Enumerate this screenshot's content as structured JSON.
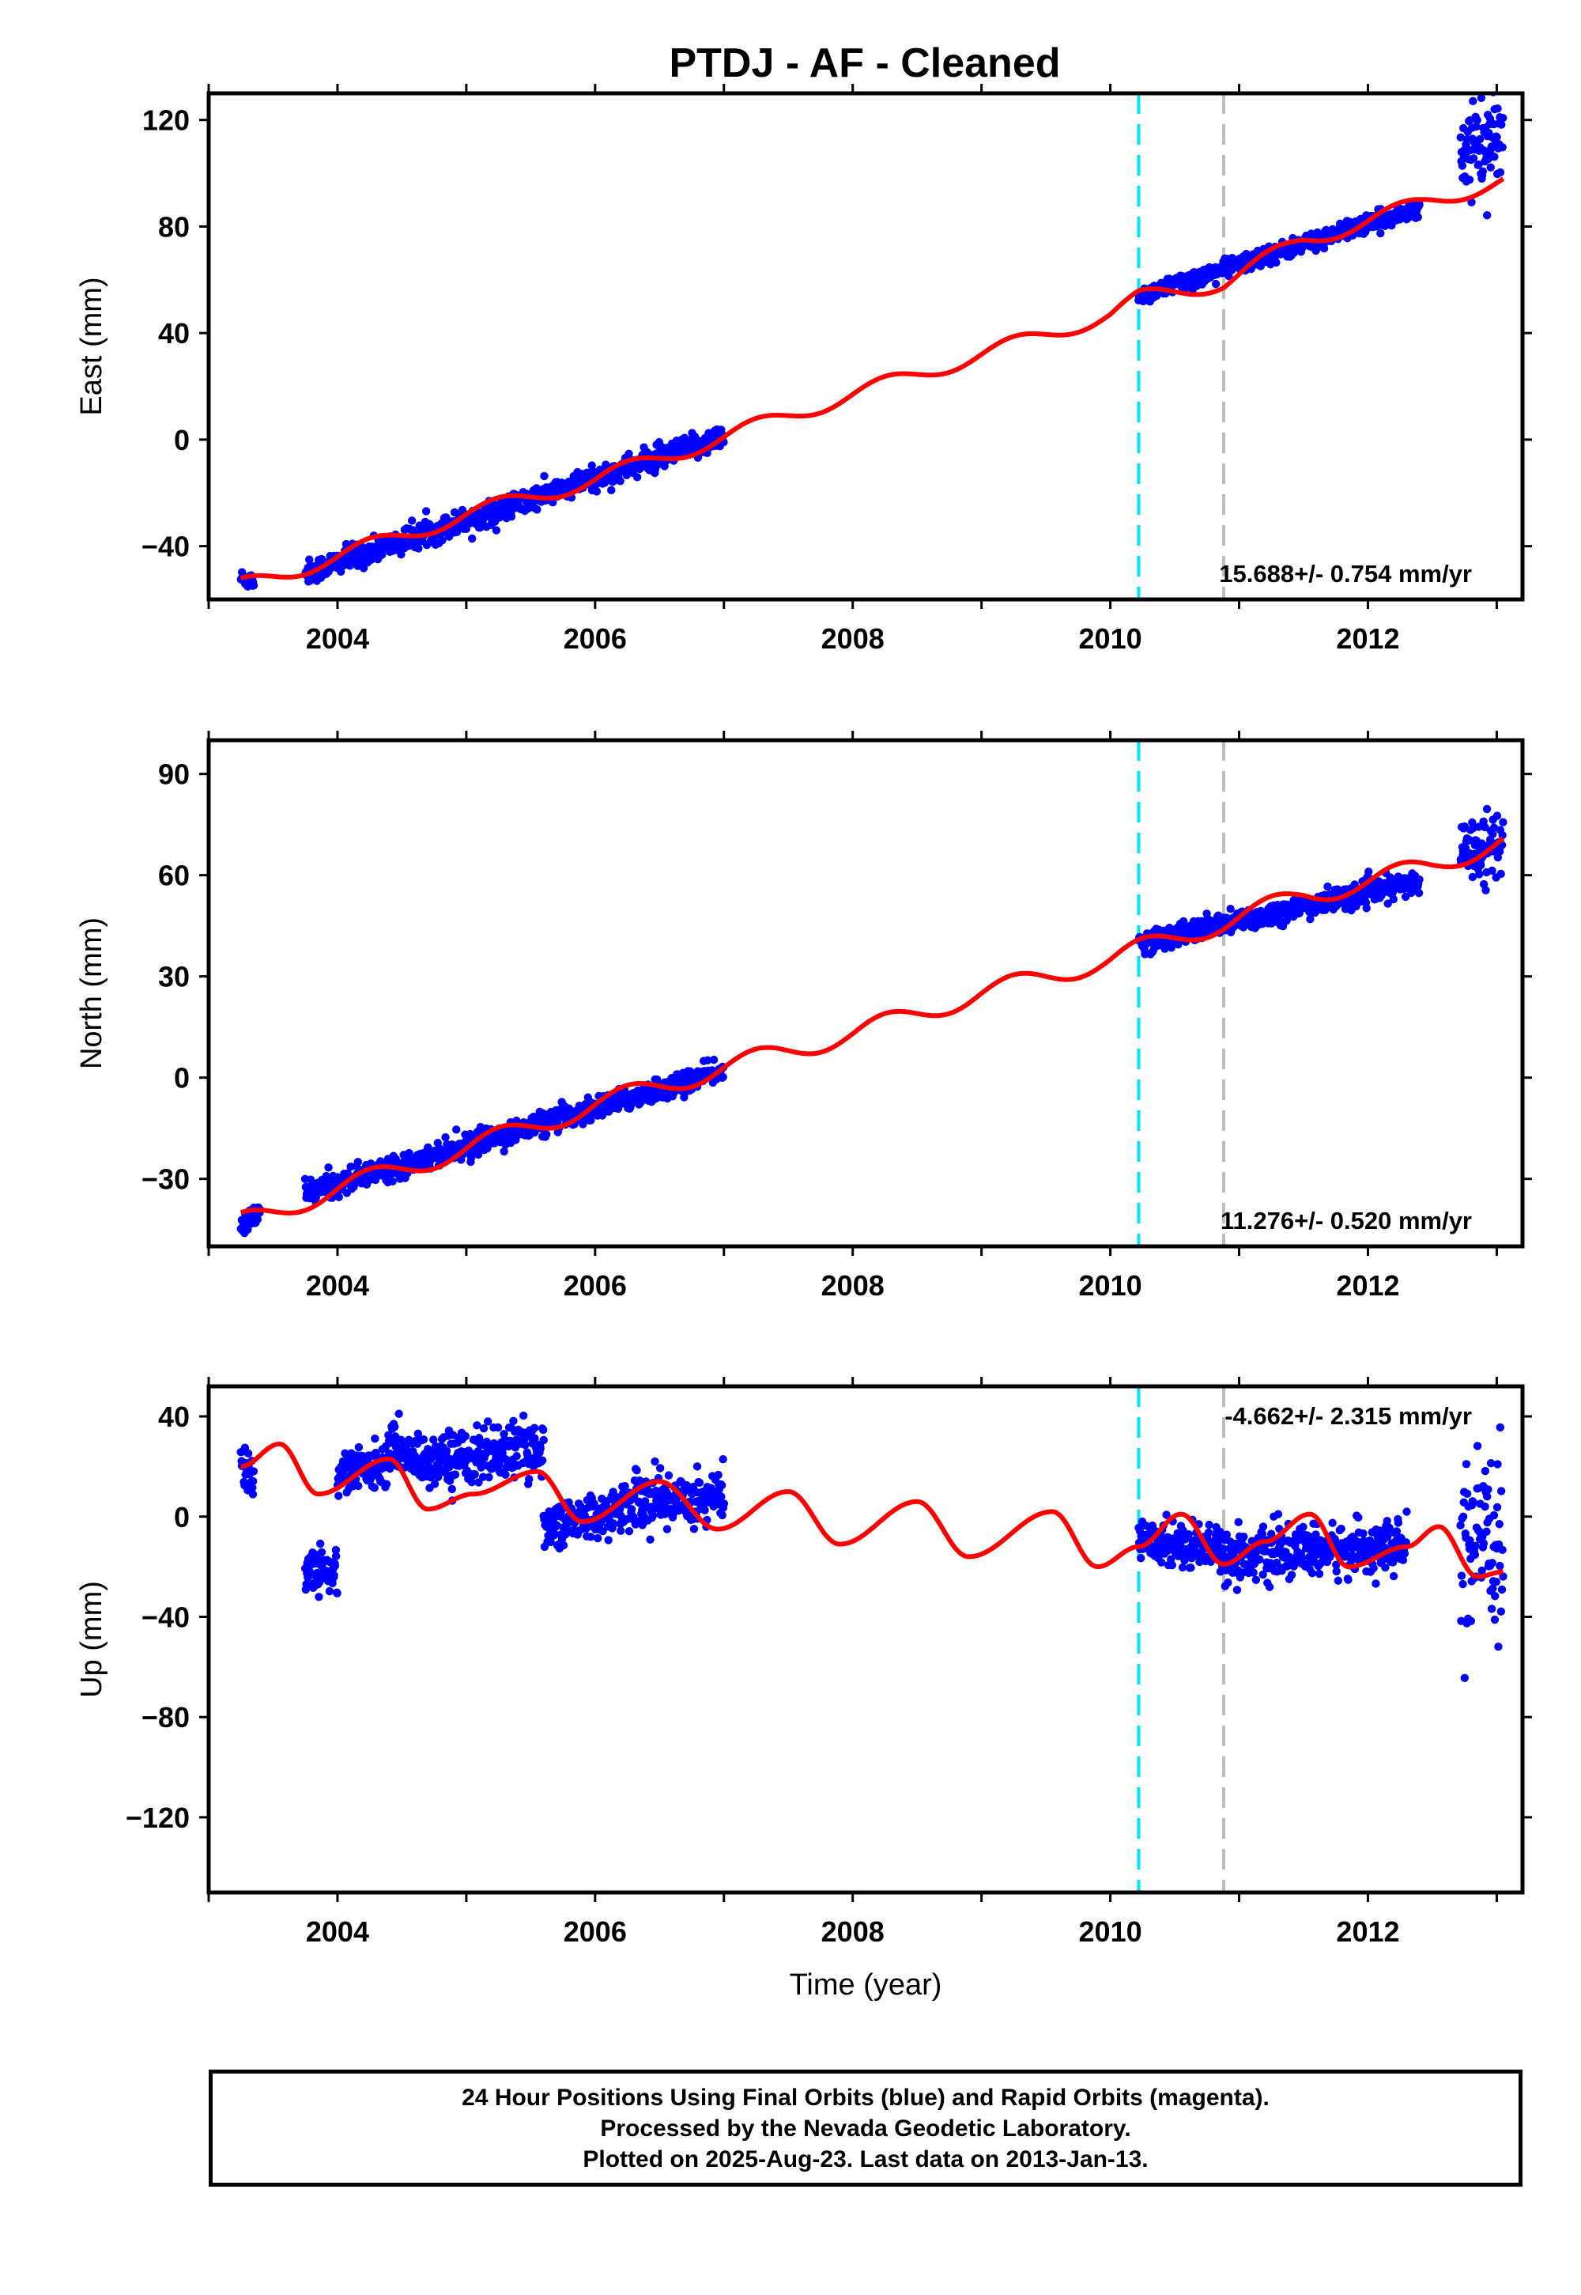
{
  "title": "PTDJ  - AF - Cleaned",
  "footer": {
    "line1": "24 Hour Positions Using Final Orbits (blue) and Rapid Orbits (magenta).",
    "line2": "Processed by the Nevada Geodetic Laboratory.",
    "line3": "Plotted on 2025-Aug-23. Last data on 2013-Jan-13."
  },
  "colors": {
    "data_points": "#0000ff",
    "model_fit": "#ff0000",
    "equipment_change_line": "#00e5ff",
    "other_offset_line": "#bdbdbd"
  },
  "xlabel": "Time (year)",
  "chart_data": [
    {
      "type": "scatter",
      "component": "east",
      "ylabel": "East (mm)",
      "xlim": [
        2003.0,
        2013.2
      ],
      "ylim": [
        -60,
        130
      ],
      "yticks": [
        -40,
        0,
        40,
        80,
        120
      ],
      "xticks": [
        2004,
        2006,
        2008,
        2010,
        2012
      ],
      "velocity_label": "15.688+/- 0.754 mm/yr",
      "velocity_label_position": "bottom-right",
      "vertical_lines": [
        {
          "x": 2010.22,
          "style": "dashed",
          "color": "cyan"
        },
        {
          "x": 2010.88,
          "style": "dashed",
          "color": "gray"
        }
      ],
      "data_segments": [
        {
          "x": [
            2003.25,
            2003.35
          ],
          "y": [
            -52,
            -53
          ],
          "scatter": 3
        },
        {
          "x": [
            2003.75,
            2007.0
          ],
          "y": [
            -50,
            1
          ],
          "scatter": 4
        },
        {
          "x": [
            2010.22,
            2012.4
          ],
          "y": [
            54,
            87
          ],
          "scatter": 3
        },
        {
          "x": [
            2012.72,
            2013.05
          ],
          "y": [
            108,
            113
          ],
          "scatter": 13
        }
      ],
      "model": {
        "x": [
          2003.25,
          2004.0,
          2005.0,
          2006.0,
          2007.0,
          2008.0,
          2009.0,
          2010.0,
          2010.22,
          2010.88,
          2011.5,
          2012.0,
          2012.5,
          2013.05
        ],
        "y": [
          -55,
          -44,
          -28,
          -15,
          1,
          17,
          32,
          47,
          53,
          59,
          75,
          82,
          90,
          97
        ],
        "seasonal_amplitude": 3
      }
    },
    {
      "type": "scatter",
      "component": "north",
      "ylabel": "North (mm)",
      "xlim": [
        2003.0,
        2013.2
      ],
      "ylim": [
        -50,
        100
      ],
      "yticks": [
        -30,
        0,
        30,
        60,
        90
      ],
      "xticks": [
        2004,
        2006,
        2008,
        2010,
        2012
      ],
      "velocity_label": "11.276+/- 0.520 mm/yr",
      "velocity_label_position": "bottom-right",
      "vertical_lines": [
        {
          "x": 2010.22,
          "style": "dashed",
          "color": "cyan"
        },
        {
          "x": 2010.88,
          "style": "dashed",
          "color": "gray"
        }
      ],
      "data_segments": [
        {
          "x": [
            2003.25,
            2003.4
          ],
          "y": [
            -44,
            -40
          ],
          "scatter": 3
        },
        {
          "x": [
            2003.75,
            2007.0
          ],
          "y": [
            -34,
            2
          ],
          "scatter": 3
        },
        {
          "x": [
            2010.22,
            2012.4
          ],
          "y": [
            40,
            58
          ],
          "scatter": 3
        },
        {
          "x": [
            2012.72,
            2013.05
          ],
          "y": [
            68,
            69
          ],
          "scatter": 8
        }
      ],
      "model": {
        "x": [
          2003.25,
          2004.0,
          2005.0,
          2006.0,
          2007.0,
          2008.0,
          2009.0,
          2010.0,
          2010.22,
          2010.88,
          2011.5,
          2012.0,
          2012.5,
          2013.05
        ],
        "y": [
          -43,
          -33,
          -21,
          -8,
          3,
          13,
          25,
          35,
          38,
          46,
          54,
          58,
          63,
          70
        ],
        "seasonal_amplitude": 3
      }
    },
    {
      "type": "scatter",
      "component": "up",
      "ylabel": "Up (mm)",
      "xlim": [
        2003.0,
        2013.2
      ],
      "ylim": [
        -150,
        52
      ],
      "yticks": [
        -120,
        -80,
        -40,
        0,
        40
      ],
      "xticks": [
        2004,
        2006,
        2008,
        2010,
        2012
      ],
      "velocity_label": "-4.662+/- 2.315 mm/yr",
      "velocity_label_position": "top-right",
      "vertical_lines": [
        {
          "x": 2010.22,
          "style": "dashed",
          "color": "cyan"
        },
        {
          "x": 2010.88,
          "style": "dashed",
          "color": "gray"
        }
      ],
      "data_segments": [
        {
          "x": [
            2003.25,
            2003.35
          ],
          "y": [
            20,
            14
          ],
          "scatter": 10
        },
        {
          "x": [
            2003.75,
            2004.0
          ],
          "y": [
            -20,
            -22
          ],
          "scatter": 9
        },
        {
          "x": [
            2004.0,
            2004.4
          ],
          "y": [
            17,
            22
          ],
          "scatter": 8
        },
        {
          "x": [
            2004.4,
            2004.7
          ],
          "y": [
            28,
            22
          ],
          "scatter": 8
        },
        {
          "x": [
            2004.7,
            2005.6
          ],
          "y": [
            22,
            28
          ],
          "scatter": 10
        },
        {
          "x": [
            2005.6,
            2006.2
          ],
          "y": [
            -4,
            2
          ],
          "scatter": 8
        },
        {
          "x": [
            2006.2,
            2007.0
          ],
          "y": [
            6,
            8
          ],
          "scatter": 10
        },
        {
          "x": [
            2010.22,
            2010.88
          ],
          "y": [
            -10,
            -12
          ],
          "scatter": 8
        },
        {
          "x": [
            2010.88,
            2012.3
          ],
          "y": [
            -16,
            -12
          ],
          "scatter": 9
        },
        {
          "x": [
            2012.72,
            2013.05
          ],
          "y": [
            -15,
            -10
          ],
          "scatter": 30
        }
      ],
      "model": {
        "x": [
          2003.25,
          2003.55,
          2003.85,
          2004.4,
          2004.7,
          2005.05,
          2005.55,
          2005.9,
          2006.5,
          2006.95,
          2007.5,
          2007.9,
          2008.5,
          2008.9,
          2009.55,
          2009.9,
          2010.22,
          2010.55,
          2010.88,
          2011.2,
          2011.55,
          2011.85,
          2012.3,
          2012.55,
          2012.85,
          2013.05
        ],
        "y": [
          20,
          29,
          9,
          23,
          3,
          9,
          18,
          -2,
          14,
          -5,
          10,
          -11,
          6,
          -16,
          2,
          -20,
          -12,
          1,
          -19,
          -10,
          1,
          -20,
          -12,
          -4,
          -24,
          -22
        ]
      }
    }
  ]
}
